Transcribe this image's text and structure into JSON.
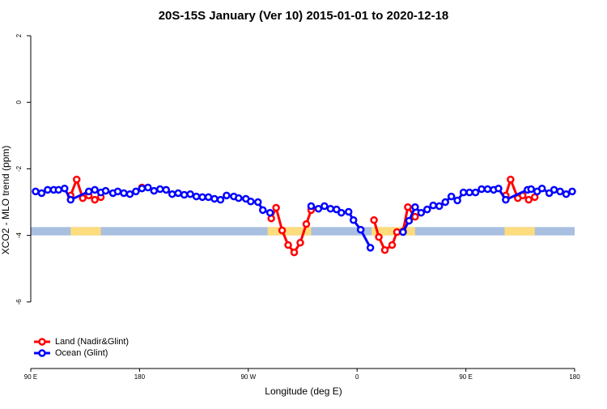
{
  "chart_data": {
    "type": "line",
    "title": "20S-15S January (Ver 10)   2015-01-01 to 2020-12-18",
    "x_label": "Longitude (deg E)",
    "y_label": "XCO2 - MLO trend (ppm)",
    "xlim": [
      90,
      540
    ],
    "ylim": [
      -8,
      2.1
    ],
    "xticks": [
      {
        "value": 90,
        "label": "90 E"
      },
      180,
      {
        "value": 270,
        "label": "90 W"
      },
      {
        "value": 360,
        "label": "0"
      },
      {
        "value": 450,
        "label": "90 E"
      },
      {
        "value": 540,
        "label": "180"
      }
    ],
    "yticks": [
      2,
      0,
      -2,
      -4,
      -6
    ],
    "legend": "bottomleft",
    "shading": {
      "ylim": [
        -4,
        -3.75
      ],
      "color": "#a8bfe0",
      "highlight_color": "#fddc7e",
      "highlights": [
        [
          123,
          148
        ],
        [
          286,
          322
        ],
        [
          372,
          408
        ],
        [
          482,
          507
        ]
      ]
    },
    "series": [
      {
        "name": "Land (Nadir&Glint)",
        "color": "#ff0000",
        "x": [
          123,
          128,
          133,
          138,
          143,
          148,
          160,
          182,
          250,
          289,
          293,
          298,
          303,
          308,
          313,
          318,
          322,
          340,
          374,
          378,
          383,
          389,
          393,
          398,
          402,
          408,
          450,
          483,
          487,
          493,
          497,
          502,
          507
        ],
        "values": [
          -2.8,
          -2.32,
          -2.88,
          -2.8,
          -2.93,
          -2.85,
          null,
          -2.56,
          null,
          -3.49,
          -3.17,
          -3.85,
          -4.29,
          -4.51,
          -4.22,
          -3.66,
          -3.24,
          null,
          -3.54,
          -4.05,
          -4.44,
          -4.29,
          -3.9,
          -3.88,
          -3.15,
          -3.44,
          null,
          -2.8,
          -2.32,
          -2.88,
          -2.8,
          -2.93,
          -2.85
        ]
      },
      {
        "name": "Ocean (Glint)",
        "color": "#0000ff",
        "x": [
          94,
          99,
          104,
          109,
          113,
          118,
          123,
          138,
          143,
          148,
          152,
          158,
          162,
          167,
          172,
          177,
          182,
          187,
          192,
          197,
          202,
          207,
          212,
          217,
          222,
          227,
          232,
          237,
          242,
          247,
          252,
          258,
          262,
          268,
          272,
          278,
          282,
          288,
          300,
          322,
          328,
          333,
          338,
          343,
          347,
          353,
          357,
          363,
          371,
          385,
          398,
          403,
          408,
          413,
          418,
          423,
          428,
          433,
          438,
          443,
          448,
          453,
          458,
          463,
          468,
          473,
          477,
          483,
          501,
          504,
          509,
          513,
          519,
          523,
          528,
          533,
          538
        ],
        "values": [
          -2.68,
          -2.73,
          -2.63,
          -2.63,
          -2.63,
          -2.59,
          -2.93,
          -2.68,
          -2.63,
          -2.71,
          -2.66,
          -2.73,
          -2.68,
          -2.73,
          -2.76,
          -2.68,
          -2.59,
          -2.56,
          -2.66,
          -2.61,
          -2.63,
          -2.76,
          -2.73,
          -2.78,
          -2.76,
          -2.83,
          -2.85,
          -2.85,
          -2.9,
          -2.93,
          -2.8,
          -2.83,
          -2.88,
          -2.9,
          -2.98,
          -3.0,
          -3.24,
          -3.32,
          null,
          -3.12,
          -3.2,
          -3.12,
          -3.2,
          -3.22,
          -3.32,
          -3.29,
          -3.54,
          -3.83,
          -4.37,
          null,
          -3.9,
          -3.56,
          -3.15,
          -3.32,
          -3.22,
          -3.1,
          -3.12,
          -3.0,
          -2.83,
          -2.95,
          -2.71,
          -2.71,
          -2.71,
          -2.61,
          -2.61,
          -2.63,
          -2.59,
          -2.93,
          -2.63,
          -2.61,
          -2.68,
          -2.59,
          -2.73,
          -2.63,
          -2.68,
          -2.76,
          -2.68
        ]
      }
    ]
  }
}
